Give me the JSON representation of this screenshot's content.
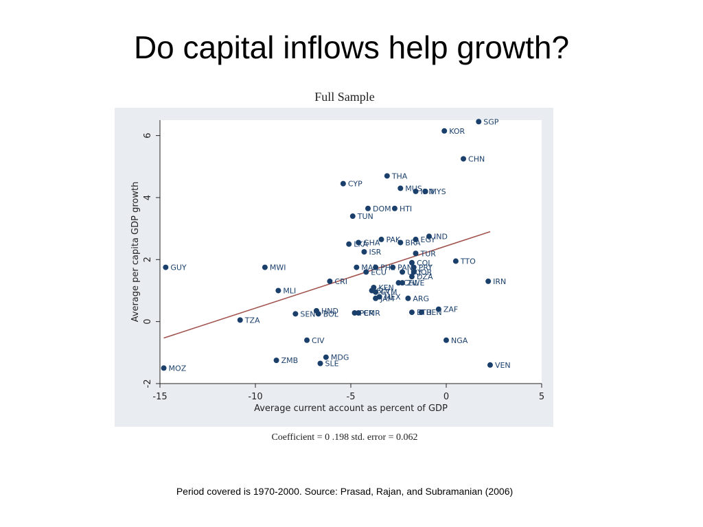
{
  "slide": {
    "title": "Do capital inflows help growth?",
    "footer": "Period covered is 1970-2000. Source: Prasad, Rajan, and Subramanian (2006)"
  },
  "chart_data": {
    "type": "scatter",
    "title": "Full Sample",
    "xlabel": "Average current account as percent of GDP",
    "ylabel": "Average per capita GDP growth",
    "note": "Coefficient = 0 .198 std. error = 0.062",
    "xlim": [
      -15,
      5
    ],
    "ylim": [
      -2,
      6.5
    ],
    "xticks": [
      -15,
      -10,
      -5,
      0,
      5
    ],
    "yticks": [
      -2,
      0,
      2,
      4,
      6
    ],
    "grid": false,
    "colors": {
      "point": "#1a3f6b",
      "fit_line": "#a0524d",
      "label": "#1a3f6b",
      "plot_bg": "#ffffff",
      "outer_bg": "#e9edf1"
    },
    "fit_line": {
      "x": [
        -14.8,
        2.3
      ],
      "y": [
        -0.53,
        2.9
      ]
    },
    "points": [
      {
        "label": "SGP",
        "x": 1.7,
        "y": 6.45
      },
      {
        "label": "KOR",
        "x": -0.1,
        "y": 6.15
      },
      {
        "label": "CHN",
        "x": 0.9,
        "y": 5.25
      },
      {
        "label": "THA",
        "x": -3.1,
        "y": 4.7
      },
      {
        "label": "CYP",
        "x": -5.4,
        "y": 4.45
      },
      {
        "label": "MUS",
        "x": -2.4,
        "y": 4.3
      },
      {
        "label": "IDN",
        "x": -1.6,
        "y": 4.2
      },
      {
        "label": "MYS",
        "x": -1.1,
        "y": 4.2
      },
      {
        "label": "DOM",
        "x": -4.1,
        "y": 3.65
      },
      {
        "label": "HTI",
        "x": -2.7,
        "y": 3.65
      },
      {
        "label": "TUN",
        "x": -4.9,
        "y": 3.4
      },
      {
        "label": "IND",
        "x": -0.9,
        "y": 2.75
      },
      {
        "label": "EGY",
        "x": -1.6,
        "y": 2.65
      },
      {
        "label": "PAK",
        "x": -3.4,
        "y": 2.65
      },
      {
        "label": "GHA",
        "x": -4.6,
        "y": 2.55
      },
      {
        "label": "BRA",
        "x": -2.4,
        "y": 2.55
      },
      {
        "label": "LKA",
        "x": -5.1,
        "y": 2.5
      },
      {
        "label": "ISR",
        "x": -4.3,
        "y": 2.25
      },
      {
        "label": "TUR",
        "x": -1.6,
        "y": 2.2
      },
      {
        "label": "TTO",
        "x": 0.5,
        "y": 1.95
      },
      {
        "label": "COL",
        "x": -1.8,
        "y": 1.9
      },
      {
        "label": "GUY",
        "x": -14.7,
        "y": 1.75
      },
      {
        "label": "MWI",
        "x": -9.5,
        "y": 1.75
      },
      {
        "label": "MAR",
        "x": -4.7,
        "y": 1.75
      },
      {
        "label": "PHL",
        "x": -3.7,
        "y": 1.75
      },
      {
        "label": "PAN",
        "x": -2.8,
        "y": 1.75
      },
      {
        "label": "PRY",
        "x": -1.7,
        "y": 1.75
      },
      {
        "label": "ECU",
        "x": -4.2,
        "y": 1.6
      },
      {
        "label": "URY",
        "x": -2.3,
        "y": 1.6
      },
      {
        "label": "JOR",
        "x": -1.7,
        "y": 1.6
      },
      {
        "label": "DZA",
        "x": -1.8,
        "y": 1.45
      },
      {
        "label": "IRN",
        "x": 2.2,
        "y": 1.3
      },
      {
        "label": "CRI",
        "x": -6.1,
        "y": 1.3
      },
      {
        "label": "CHL",
        "x": -2.5,
        "y": 1.25
      },
      {
        "label": "ZWE",
        "x": -2.3,
        "y": 1.25
      },
      {
        "label": "KEN",
        "x": -3.8,
        "y": 1.1
      },
      {
        "label": "MLI",
        "x": -8.8,
        "y": 1.0
      },
      {
        "label": "SLV",
        "x": -3.9,
        "y": 1.0
      },
      {
        "label": "GTM",
        "x": -3.7,
        "y": 0.95
      },
      {
        "label": "MEX",
        "x": -3.5,
        "y": 0.8
      },
      {
        "label": "JAM",
        "x": -3.7,
        "y": 0.75
      },
      {
        "label": "ARG",
        "x": -2.0,
        "y": 0.75
      },
      {
        "label": "ZAF",
        "x": -0.4,
        "y": 0.4
      },
      {
        "label": "HND",
        "x": -6.8,
        "y": 0.35
      },
      {
        "label": "SEN",
        "x": -7.9,
        "y": 0.25
      },
      {
        "label": "BOL",
        "x": -6.7,
        "y": 0.25
      },
      {
        "label": "PER",
        "x": -4.8,
        "y": 0.28
      },
      {
        "label": "CMR",
        "x": -4.6,
        "y": 0.28
      },
      {
        "label": "ETH",
        "x": -1.8,
        "y": 0.3
      },
      {
        "label": "BEN",
        "x": -1.3,
        "y": 0.3
      },
      {
        "label": "TZA",
        "x": -10.8,
        "y": 0.05
      },
      {
        "label": "CIV",
        "x": -7.3,
        "y": -0.6
      },
      {
        "label": "NGA",
        "x": 0.0,
        "y": -0.6
      },
      {
        "label": "ZMB",
        "x": -8.9,
        "y": -1.25
      },
      {
        "label": "MDG",
        "x": -6.3,
        "y": -1.15
      },
      {
        "label": "SLE",
        "x": -6.6,
        "y": -1.35
      },
      {
        "label": "VEN",
        "x": 2.3,
        "y": -1.4
      },
      {
        "label": "MOZ",
        "x": -14.8,
        "y": -1.5
      }
    ]
  }
}
